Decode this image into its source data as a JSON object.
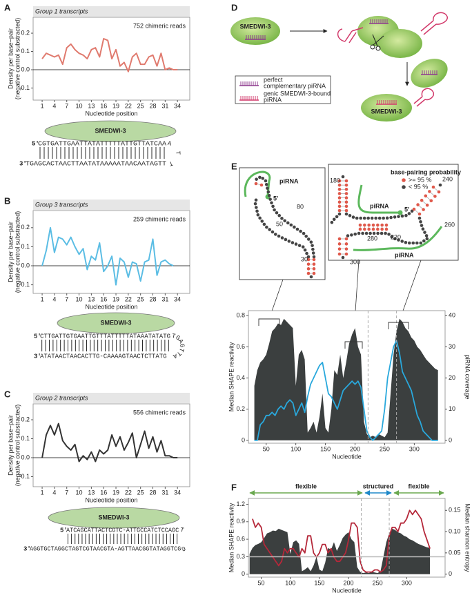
{
  "panel_labels": [
    "A",
    "B",
    "C",
    "D",
    "E",
    "F"
  ],
  "chart_data": [
    {
      "type": "line",
      "title": "Group 1 transcripts",
      "annotation": "752 chimeric reads",
      "y_label": [
        "Density per base−pair",
        "(negative control substracted)"
      ],
      "x_label": "Nucleotide position",
      "x": [
        1,
        2,
        3,
        4,
        5,
        6,
        7,
        8,
        9,
        10,
        11,
        12,
        13,
        14,
        15,
        16,
        17,
        18,
        19,
        20,
        21,
        22,
        23,
        24,
        25,
        26,
        27,
        28,
        29,
        30,
        31,
        32,
        33,
        34
      ],
      "values": [
        0.06,
        0.09,
        0.08,
        0.07,
        0.08,
        0.03,
        0.12,
        0.14,
        0.11,
        0.09,
        0.08,
        0.06,
        0.11,
        0.12,
        0.07,
        0.17,
        0.16,
        0.06,
        0.11,
        0.02,
        0.04,
        -0.01,
        0.07,
        0.09,
        0.03,
        0.03,
        0.07,
        0.08,
        0.02,
        0.09,
        0.0,
        0.01,
        0.0,
        0.0
      ],
      "color": "#e07a6e",
      "xlim": [
        -1.2,
        37
      ],
      "ylim": [
        -0.166,
        0.287
      ],
      "xticks": [
        1,
        4,
        7,
        10,
        13,
        16,
        19,
        22,
        25,
        28,
        31,
        34
      ],
      "yticks": [
        -0.1,
        {
          "value": 0,
          "label": "0.0"
        },
        0.1,
        0.2
      ],
      "zero_line": true
    },
    {
      "type": "line",
      "title": "Group 3 transcripts",
      "annotation": "259 chimeric reads",
      "y_label": [
        "Density per base−pair",
        "(negative control substracted)"
      ],
      "x_label": "Nucleotide position",
      "x": [
        1,
        2,
        3,
        4,
        5,
        6,
        7,
        8,
        9,
        10,
        11,
        12,
        13,
        14,
        15,
        16,
        17,
        18,
        19,
        20,
        21,
        22,
        23,
        24,
        25,
        26,
        27,
        28,
        29,
        30,
        31,
        32,
        33
      ],
      "values": [
        0.0,
        0.08,
        0.2,
        0.07,
        0.15,
        0.14,
        0.11,
        0.15,
        0.1,
        0.06,
        0.09,
        -0.02,
        0.05,
        0.03,
        0.12,
        -0.03,
        0.0,
        0.05,
        -0.1,
        0.04,
        0.02,
        -0.06,
        0.02,
        0.01,
        -0.08,
        0.02,
        0.03,
        0.14,
        -0.05,
        0.02,
        0.03,
        0.01,
        0.0
      ],
      "color": "#5bbde4",
      "xlim": [
        -1.2,
        37
      ],
      "ylim": [
        -0.145,
        0.29
      ],
      "xticks": [
        1,
        4,
        7,
        10,
        13,
        16,
        19,
        22,
        25,
        28,
        31,
        34
      ],
      "yticks": [
        -0.1,
        {
          "value": 0,
          "label": "0.0"
        },
        0.1,
        0.2
      ],
      "zero_line": true
    },
    {
      "type": "line",
      "title": "Group 2 transcripts",
      "annotation": "556 chimeric reads",
      "y_label": [
        "Density per base−pair",
        "(negative control substracted)"
      ],
      "x_label": "Nucleotide position",
      "x": [
        1,
        2,
        3,
        4,
        5,
        6,
        7,
        8,
        9,
        10,
        11,
        12,
        13,
        14,
        15,
        16,
        17,
        18,
        19,
        20,
        21,
        22,
        23,
        24,
        25,
        26,
        27,
        28,
        29,
        30,
        31,
        32,
        33,
        34
      ],
      "values": [
        0.0,
        0.12,
        0.17,
        0.12,
        0.18,
        0.09,
        0.06,
        0.04,
        0.07,
        -0.02,
        0.01,
        -0.01,
        0.03,
        -0.02,
        0.04,
        0.02,
        0.04,
        0.12,
        0.06,
        0.11,
        0.04,
        0.08,
        0.13,
        0.0,
        0.07,
        0.14,
        0.05,
        0.11,
        0.03,
        0.09,
        0.01,
        0.01,
        0.0,
        0.0
      ],
      "color": "#333333",
      "xlim": [
        -1.2,
        37
      ],
      "ylim": [
        -0.153,
        0.284
      ],
      "xticks": [
        1,
        4,
        7,
        10,
        13,
        16,
        19,
        22,
        25,
        28,
        31,
        34
      ],
      "yticks": [
        -0.1,
        {
          "value": 0,
          "label": "0.0"
        },
        0.1,
        0.2
      ],
      "zero_line": true
    },
    {
      "type": "area_line",
      "y_label": "Median SHAPE reactivity",
      "y2_label": "piRNA coverage",
      "x_label": "Nucleotide",
      "x": [
        30,
        35,
        40,
        45,
        50,
        55,
        60,
        65,
        70,
        75,
        80,
        85,
        90,
        95,
        100,
        105,
        110,
        115,
        120,
        125,
        130,
        135,
        140,
        145,
        150,
        155,
        160,
        165,
        170,
        175,
        180,
        185,
        190,
        195,
        200,
        205,
        210,
        215,
        220,
        225,
        230,
        235,
        240,
        245,
        250,
        255,
        260,
        265,
        270,
        275,
        280,
        285,
        290,
        295,
        300,
        305,
        310,
        315,
        320,
        325,
        330,
        335,
        340
      ],
      "series": [
        {
          "style": "area",
          "color": "#3b3f3f",
          "values": [
            0.35,
            0.45,
            0.5,
            0.52,
            0.55,
            0.62,
            0.7,
            0.72,
            0.75,
            0.74,
            0.78,
            0.76,
            0.74,
            0.72,
            0.35,
            0.55,
            0.58,
            0.52,
            0.05,
            0.08,
            0.12,
            0.05,
            0.15,
            0.3,
            0.08,
            0.05,
            0.2,
            0.45,
            0.42,
            0.55,
            0.4,
            0.5,
            0.62,
            0.68,
            0.72,
            0.6,
            0.55,
            0.12,
            0.04,
            0.02,
            0.03,
            0.02,
            0.04,
            0.03,
            0.02,
            0.05,
            0.3,
            0.55,
            0.7,
            0.78,
            0.76,
            0.72,
            0.7,
            0.66,
            0.64,
            0.6,
            0.58,
            0.55,
            0.52,
            0.5,
            0.48,
            0.46,
            0.45
          ]
        },
        {
          "style": "line",
          "axis": "y2",
          "color": "#29a8dc",
          "values": [
            0,
            0,
            5,
            6,
            8,
            8,
            9,
            8,
            10,
            11,
            10,
            12,
            13,
            12,
            8,
            10,
            12,
            9,
            14,
            18,
            20,
            22,
            24,
            25,
            20,
            15,
            14,
            12,
            10,
            13,
            16,
            17,
            18,
            19,
            18,
            19,
            17,
            10,
            3,
            1,
            0,
            1,
            2,
            3,
            10,
            20,
            25,
            30,
            32,
            28,
            22,
            20,
            18,
            16,
            12,
            8,
            6,
            3,
            2,
            1,
            0,
            0,
            0
          ]
        }
      ],
      "xlim": [
        20,
        352
      ],
      "ylim": [
        -0.018,
        0.832
      ],
      "y2lim": [
        -0.9,
        41.6
      ],
      "xticks": [
        50,
        100,
        150,
        200,
        250,
        300
      ],
      "yticks": [
        0,
        0.2,
        0.4,
        0.6,
        0.8
      ],
      "y2ticks": [
        0,
        10,
        20,
        30,
        40
      ],
      "vlines": [
        222,
        270
      ]
    },
    {
      "type": "area_line",
      "y_label": "Median SHAPE reactivity",
      "y2_label": "Median shannon entropy",
      "x_label": "Nucleotide",
      "region_labels": [
        "flexible",
        "structured",
        "flexible"
      ],
      "x": [
        30,
        35,
        40,
        45,
        50,
        55,
        60,
        65,
        70,
        75,
        80,
        85,
        90,
        95,
        100,
        105,
        110,
        115,
        120,
        125,
        130,
        135,
        140,
        145,
        150,
        155,
        160,
        165,
        170,
        175,
        180,
        185,
        190,
        195,
        200,
        205,
        210,
        215,
        220,
        225,
        230,
        235,
        240,
        245,
        250,
        255,
        260,
        265,
        270,
        275,
        280,
        285,
        290,
        295,
        300,
        305,
        310,
        315,
        320,
        325,
        330,
        335,
        340
      ],
      "series": [
        {
          "style": "area",
          "color": "#3b3f3f",
          "values": [
            0.35,
            0.45,
            0.5,
            0.52,
            0.55,
            0.62,
            0.7,
            0.72,
            0.75,
            0.74,
            0.78,
            0.76,
            0.74,
            0.72,
            0.35,
            0.55,
            0.58,
            0.52,
            0.05,
            0.08,
            0.12,
            0.05,
            0.15,
            0.3,
            0.08,
            0.05,
            0.2,
            0.45,
            0.42,
            0.55,
            0.4,
            0.5,
            0.62,
            0.68,
            0.72,
            0.6,
            0.55,
            0.12,
            0.04,
            0.02,
            0.03,
            0.02,
            0.04,
            0.03,
            0.02,
            0.05,
            0.3,
            0.55,
            0.7,
            0.78,
            0.76,
            0.72,
            0.7,
            0.66,
            0.64,
            0.6,
            0.58,
            0.55,
            0.52,
            0.5,
            0.48,
            0.46,
            0.45
          ]
        },
        {
          "style": "line",
          "axis": "y2",
          "color": "#b5283a",
          "values": [
            null,
            0.13,
            0.11,
            0.12,
            0.11,
            0.07,
            0.06,
            0.05,
            0.04,
            0.03,
            0.02,
            0.03,
            0.06,
            0.05,
            0.06,
            0.06,
            0.05,
            0.04,
            0.06,
            0.05,
            0.09,
            0.09,
            0.05,
            0.04,
            0.05,
            0.07,
            0.07,
            0.05,
            0.06,
            0.04,
            0.03,
            0.03,
            0.04,
            0.05,
            0.08,
            0.12,
            0.12,
            0.11,
            0.03,
            0.01,
            0.005,
            0.005,
            0.005,
            0.01,
            0.01,
            0.005,
            0.01,
            0.02,
            0.09,
            0.11,
            0.11,
            0.1,
            0.12,
            0.12,
            0.13,
            0.15,
            0.14,
            0.15,
            0.14,
            0.13,
            0.1,
            0.08,
            0.06
          ]
        }
      ],
      "xlim": [
        28,
        366
      ],
      "ylim": [
        -0.05,
        1.3
      ],
      "y2lim": [
        -0.007,
        0.178
      ],
      "xticks": [
        50,
        100,
        150,
        200,
        250,
        300
      ],
      "yticks": [
        0,
        0.3,
        0.6,
        0.9,
        1.2
      ],
      "y2ticks": [
        0,
        0.05,
        {
          "value": 0.1,
          "label": "0.10"
        },
        0.15
      ],
      "hline": 0.3,
      "hline_color": "#bbbbbb",
      "vlines": [
        222,
        270
      ]
    }
  ],
  "complexes": [
    {
      "protein": "SMEDWI-3",
      "color": "#e0584a",
      "top_prime": "5′",
      "top": "CGTGATTGAATTATATTTTTATTGTTATCAA",
      "loop": "ATT",
      "bottom_prime": "3′",
      "bottom_lead": "TGAGCA",
      "bottom": "CTAACTTAATATAAAAATAACAATAGTT"
    },
    {
      "protein": "SMEDWI-3",
      "color": "#1aa3d8",
      "top_prime": "5′",
      "top": "CTTGATTGTGAATTGTTTATTTTTATAAATATATG",
      "loop": "TGAGTTA",
      "bottom_prime": "3′",
      "bottom_lead": "",
      "bottom": "ATATAACTAACACTTG-CAAAAGTAACTCTTATG"
    },
    {
      "protein": "SMEDWI-3",
      "color": "#222222",
      "top_prime": "5′",
      "top": "ATCAGCATTACTCGTC-ATTGCCATCTCCAGC",
      "loop": "TG",
      "bottom_prime": "3′",
      "bottom_lead": "",
      "bottom": "AGGTGCTAGGCTAGTCGTAACGTA-AGTTAACGGTATAGGTCG"
    }
  ],
  "diagram": {
    "protein_top": "SMEDWI-3",
    "protein_bottom": "SMEDWI-3",
    "legend": [
      [
        "perfect",
        "complementary piRNA"
      ],
      [
        "genic SMEDWI-3-bound",
        "piRNA"
      ]
    ]
  },
  "structure_left": {
    "label": "piRNA",
    "five_prime": "5'",
    "numbers": [
      "50",
      "80",
      "30"
    ]
  },
  "structure_right": {
    "legend_title": "base-pairing probability",
    "legend": [
      ">= 95 %",
      "< 95 %"
    ],
    "labels": [
      "piRNA",
      "piRNA"
    ],
    "five_prime": "5'",
    "numbers": [
      "180",
      "240",
      "260",
      "220",
      "280",
      "300"
    ]
  }
}
